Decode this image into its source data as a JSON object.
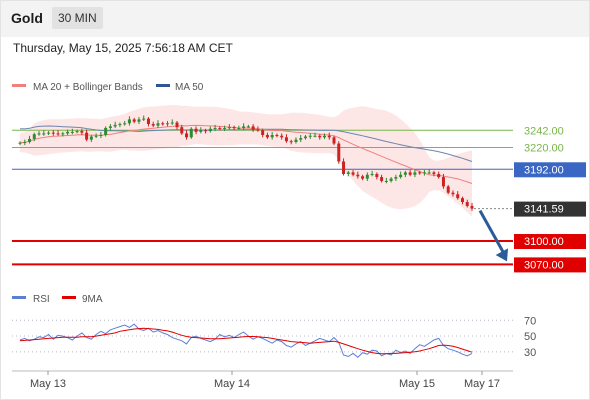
{
  "header": {
    "instrument": "Gold",
    "timeframe": "30 MIN",
    "datetime": "Thursday, May 15, 2025 7:56:18 AM CET"
  },
  "colors": {
    "ma20": "#f08080",
    "bollinger_fill": "#fde3e3",
    "ma50": "#6a86b0",
    "ma50_legend": "#2f5597",
    "candle_up": "#2e8b2e",
    "candle_down": "#cc2222",
    "support": "#e00000",
    "resistance": "#7ab648",
    "pivot": "#3a66c4",
    "price_tag": "#333333",
    "arrow": "#2a5c9a",
    "rsi": "#5b7fd6",
    "rsi_ma": "#e00000"
  },
  "chart_data": {
    "type": "candlestick",
    "legend": [
      "MA 20 + Bollinger Bands",
      "MA 50"
    ],
    "x_ticks": [
      "May 13",
      "May 14",
      "May 15",
      "May 17"
    ],
    "y_range": [
      3050,
      3286
    ],
    "levels": [
      {
        "label": "3242.00",
        "value": 3242,
        "kind": "resistance"
      },
      {
        "label": "3220.00",
        "value": 3220,
        "kind": "resistance"
      },
      {
        "label": "3192.00",
        "value": 3192,
        "kind": "pivot"
      },
      {
        "label": "3100.00",
        "value": 3100,
        "kind": "support"
      },
      {
        "label": "3070.00",
        "value": 3070,
        "kind": "support"
      }
    ],
    "current_price": {
      "label": "3141.59",
      "value": 3141.59
    },
    "forecast_arrow": {
      "from": 3141.59,
      "to": 3070
    },
    "closes": [
      3226,
      3227,
      3231,
      3237,
      3238,
      3238,
      3239,
      3238,
      3237,
      3238,
      3240,
      3240,
      3241,
      3239,
      3230,
      3234,
      3235,
      3236,
      3245,
      3247,
      3249,
      3250,
      3251,
      3256,
      3253,
      3256,
      3257,
      3250,
      3248,
      3251,
      3250,
      3251,
      3252,
      3246,
      3238,
      3233,
      3244,
      3240,
      3242,
      3241,
      3244,
      3245,
      3244,
      3245,
      3246,
      3245,
      3245,
      3247,
      3247,
      3243,
      3242,
      3236,
      3233,
      3236,
      3235,
      3233,
      3228,
      3227,
      3230,
      3232,
      3234,
      3235,
      3235,
      3233,
      3235,
      3233,
      3225,
      3202,
      3186,
      3188,
      3185,
      3183,
      3180,
      3185,
      3186,
      3182,
      3177,
      3177,
      3180,
      3182,
      3185,
      3188,
      3185,
      3188,
      3187,
      3188,
      3188,
      3186,
      3182,
      3170,
      3162,
      3160,
      3155,
      3150,
      3145,
      3141.59
    ],
    "rsi": {
      "legend": [
        "RSI",
        "9MA"
      ],
      "ticks": [
        70,
        50,
        30
      ],
      "range": [
        12,
        78
      ],
      "values": [
        45,
        47,
        44,
        46,
        49,
        48,
        52,
        46,
        51,
        50,
        48,
        45,
        50,
        54,
        48,
        46,
        52,
        56,
        53,
        58,
        60,
        62,
        64,
        61,
        65,
        59,
        57,
        60,
        55,
        57,
        54,
        52,
        48,
        46,
        44,
        40,
        48,
        50,
        47,
        45,
        43,
        46,
        52,
        49,
        51,
        48,
        52,
        55,
        50,
        46,
        49,
        47,
        44,
        41,
        45,
        43,
        38,
        36,
        40,
        43,
        38,
        41,
        44,
        47,
        45,
        43,
        48,
        42,
        26,
        24,
        28,
        23,
        29,
        27,
        32,
        31,
        25,
        28,
        26,
        32,
        29,
        31,
        28,
        34,
        39,
        37,
        41,
        45,
        47,
        38,
        34,
        32,
        30,
        27,
        25,
        28
      ],
      "ma9": [
        44,
        44.5,
        45,
        45.5,
        46,
        46.5,
        47,
        47.5,
        48,
        48.5,
        48.5,
        48.5,
        48.5,
        49,
        49,
        49,
        50,
        51,
        52,
        53,
        54,
        56,
        57,
        58,
        59,
        59.5,
        60,
        59.5,
        59,
        58.5,
        57.5,
        56.5,
        55,
        53,
        51,
        49.5,
        48.5,
        48,
        47.5,
        47,
        46.5,
        46.5,
        46.5,
        47,
        47.5,
        48,
        48.5,
        49,
        49.5,
        49.5,
        49,
        48.5,
        48,
        47,
        46,
        45,
        44,
        43,
        42.5,
        42,
        41.5,
        41,
        41.5,
        42,
        42.5,
        43,
        43.5,
        42,
        40,
        38,
        36,
        34,
        32,
        30.5,
        29,
        28,
        27.5,
        27.5,
        28,
        28,
        28.5,
        29,
        29.5,
        30,
        31,
        32.5,
        34,
        36,
        38,
        38.5,
        38,
        37,
        35.5,
        33.5,
        31.5,
        29.5
      ]
    }
  }
}
